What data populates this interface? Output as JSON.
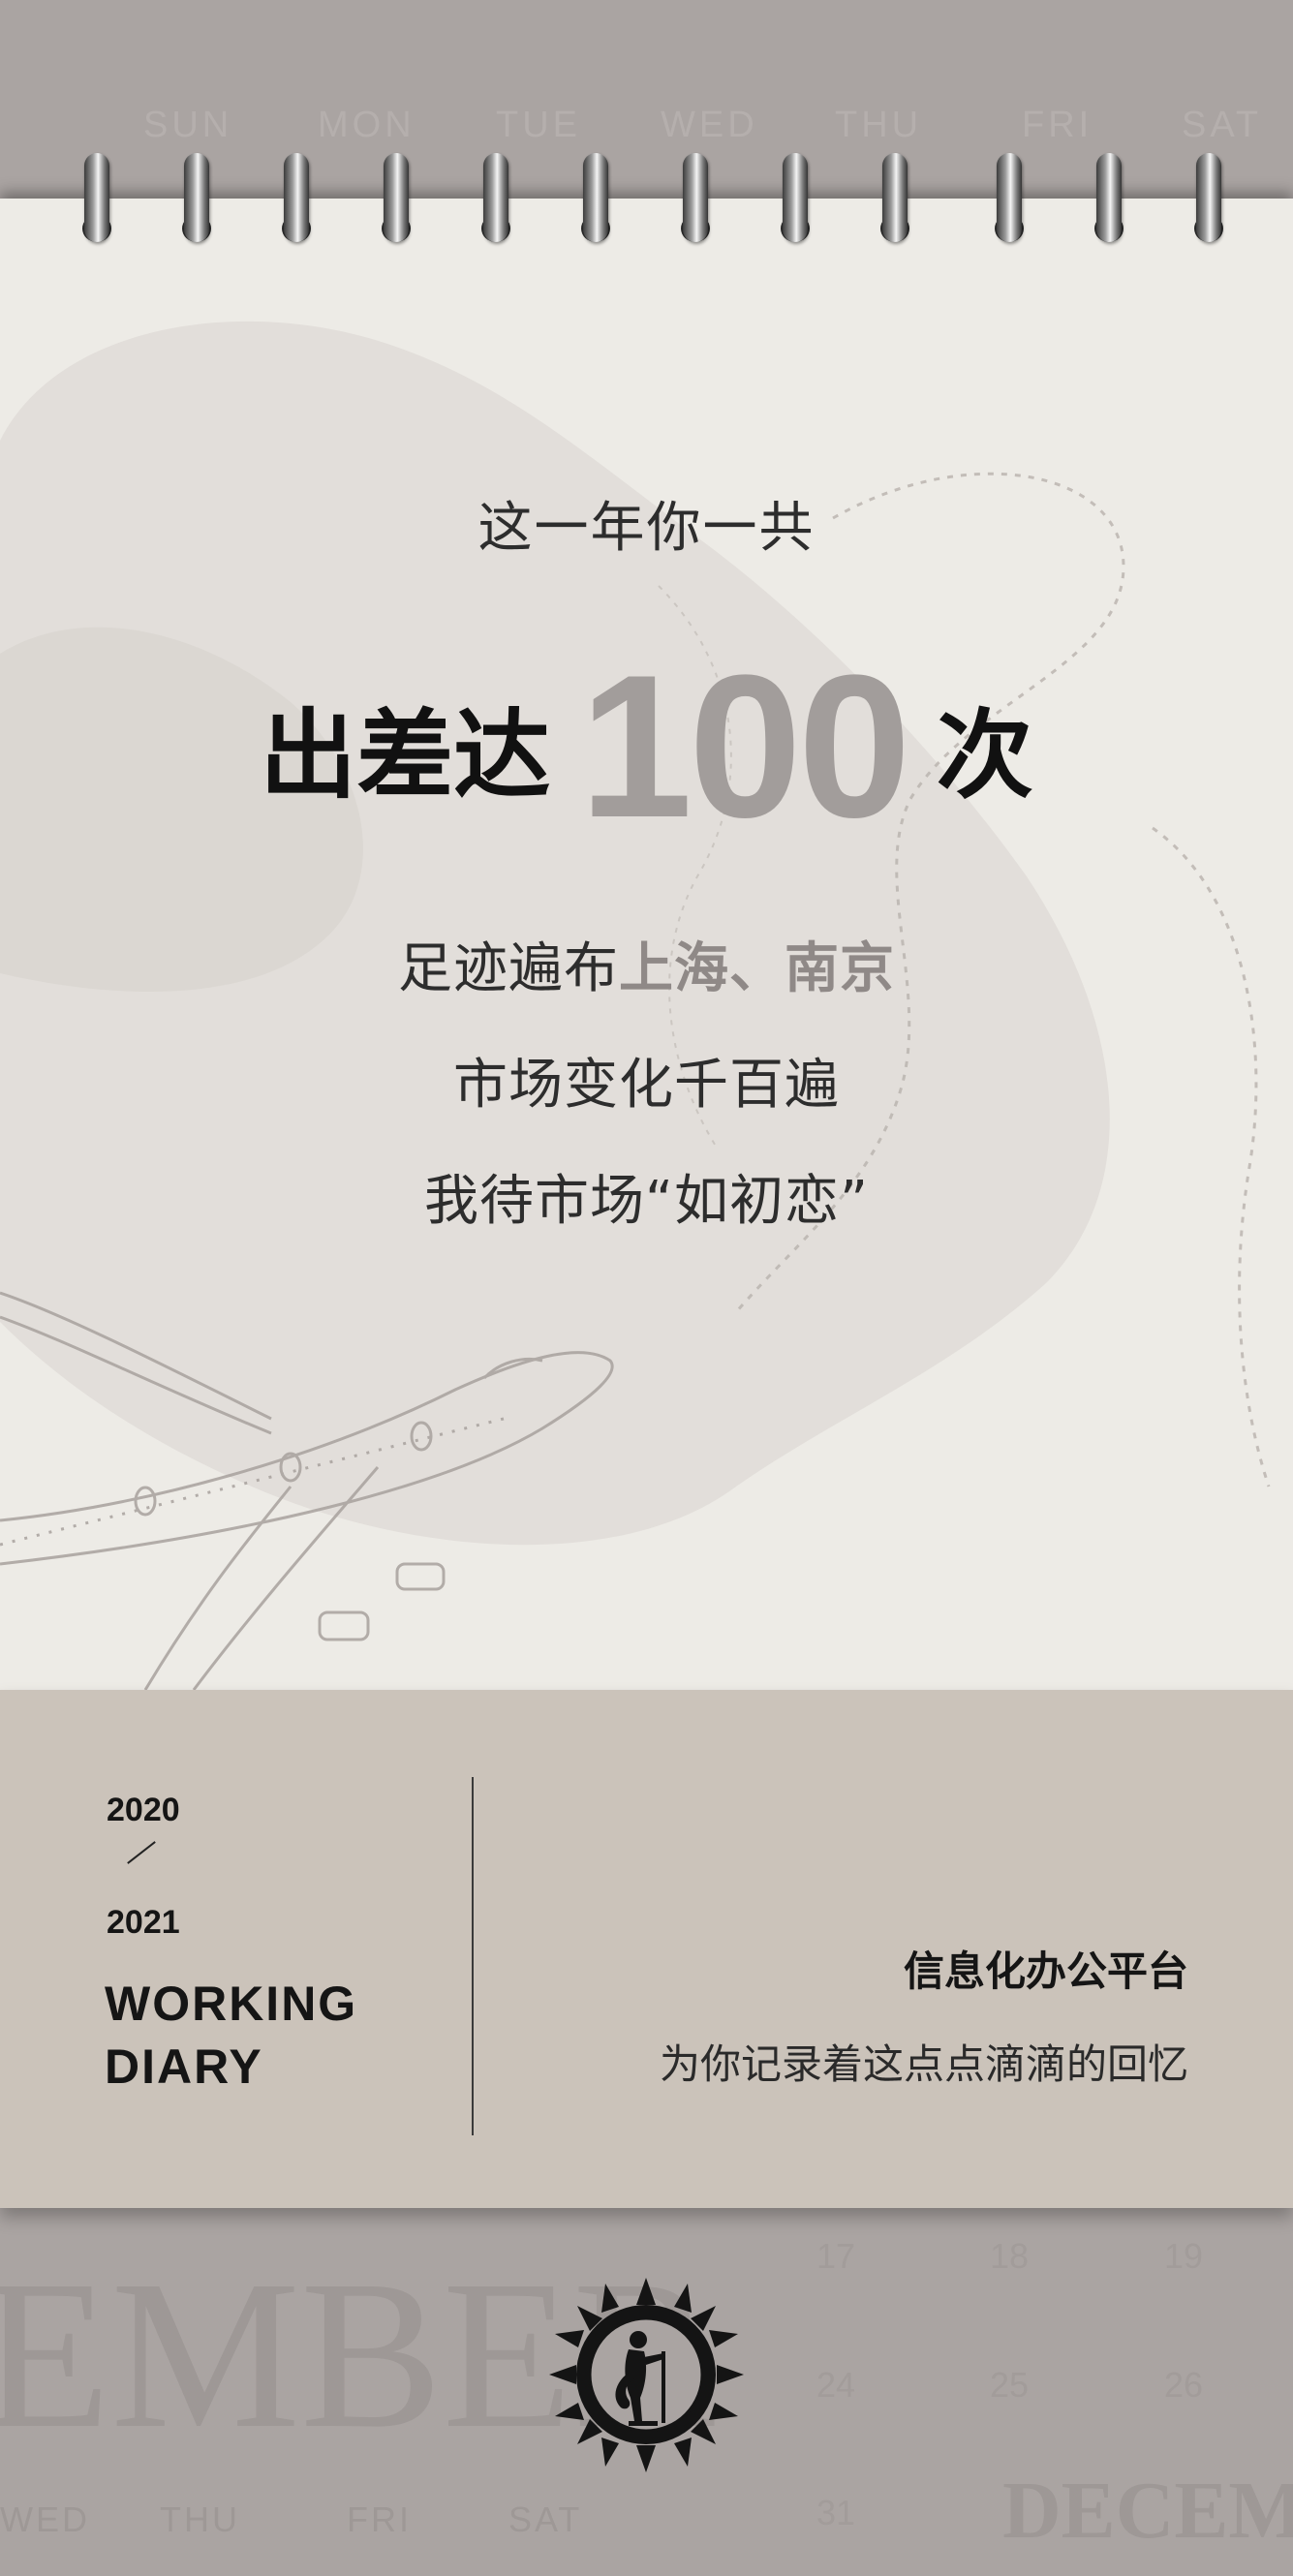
{
  "calendar_header": {
    "weekdays": [
      "SUN",
      "MON",
      "TUE",
      "WED",
      "THU",
      "FRI",
      "SAT"
    ]
  },
  "card": {
    "intro": "这一年你一共",
    "headline_prefix": "出差达",
    "count": "100",
    "headline_suffix": "次",
    "line1_prefix": "足迹遍布",
    "line1_cities": "上海、南京",
    "line2": "市场变化千百遍",
    "line3": "我待市场“如初恋”"
  },
  "footer": {
    "year_start": "2020",
    "year_end": "2021",
    "label_line1": "WORKING",
    "label_line2": "DIARY",
    "platform_title": "信息化办公平台",
    "platform_subtitle": "为你记录着这点点滴滴的回忆"
  },
  "bottom_calendar": {
    "month": "EMBER",
    "month_small": "DECEMB",
    "weekdays": [
      "WED",
      "THU",
      "FRI",
      "SAT"
    ],
    "dates": [
      "17",
      "18",
      "19",
      "24",
      "25",
      "26",
      "31"
    ]
  },
  "colors": {
    "accent": "#a29d9b",
    "paper": "#edebe6",
    "band": "#cbc3ba",
    "background": "#aaa4a2"
  }
}
